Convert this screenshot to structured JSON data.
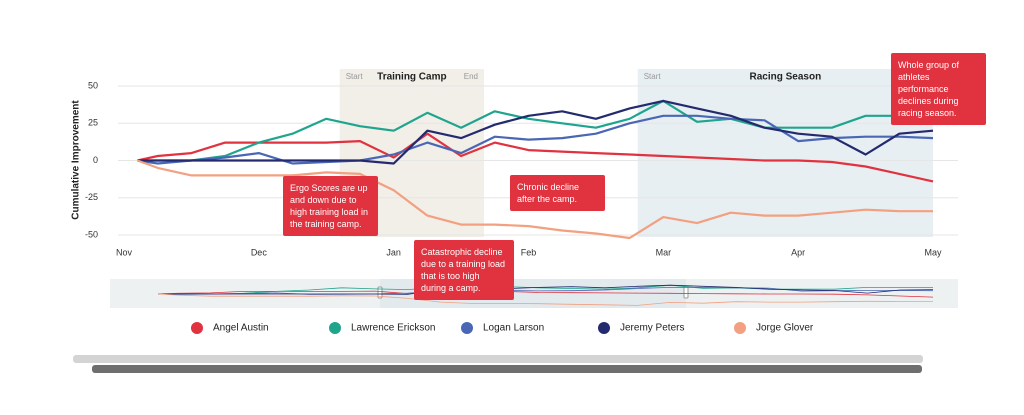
{
  "chart_data": {
    "type": "line",
    "y_label": "Cumulative Improvement",
    "x": [
      0.1,
      0.25,
      0.5,
      0.75,
      1.0,
      1.25,
      1.5,
      1.75,
      2.0,
      2.25,
      2.5,
      2.75,
      3.0,
      3.25,
      3.5,
      3.75,
      4.0,
      4.25,
      4.5,
      4.75,
      5.0,
      5.25,
      5.5,
      5.75,
      6.0
    ],
    "xlim": [
      0,
      6
    ],
    "xticks": [
      {
        "value": 0,
        "label": "Nov"
      },
      {
        "value": 1,
        "label": "Dec"
      },
      {
        "value": 2,
        "label": "Jan"
      },
      {
        "value": 3,
        "label": "Feb"
      },
      {
        "value": 4,
        "label": "Mar"
      },
      {
        "value": 5,
        "label": "Apr"
      },
      {
        "value": 6,
        "label": "May"
      }
    ],
    "ylim": [
      -50,
      50
    ],
    "yticks": [
      -50,
      -25,
      0,
      25,
      50
    ],
    "grid": true,
    "series": [
      {
        "name": "Angel Austin",
        "color": "#e0323f",
        "values": [
          0,
          3,
          5,
          12,
          12,
          12,
          12,
          13,
          2,
          18,
          3,
          12,
          7,
          6,
          5,
          4,
          3,
          2,
          1,
          0,
          0,
          -1,
          -4,
          -9,
          -14
        ]
      },
      {
        "name": "Lawrence Erickson",
        "color": "#1fa58e",
        "values": [
          0,
          0,
          0,
          3,
          12,
          18,
          28,
          23,
          20,
          32,
          22,
          33,
          28,
          25,
          22,
          28,
          40,
          26,
          28,
          22,
          22,
          22,
          30,
          30,
          30
        ]
      },
      {
        "name": "Logan Larson",
        "color": "#4a67b5",
        "values": [
          0,
          -2,
          0,
          2,
          5,
          -2,
          -1,
          0,
          4,
          12,
          5,
          16,
          14,
          15,
          18,
          25,
          30,
          30,
          28,
          27,
          13,
          15,
          16,
          16,
          15
        ]
      },
      {
        "name": "Jeremy Peters",
        "color": "#232a6e",
        "values": [
          0,
          0,
          0,
          0,
          0,
          0,
          0,
          0,
          -2,
          20,
          15,
          24,
          30,
          33,
          28,
          35,
          40,
          35,
          30,
          22,
          18,
          16,
          4,
          18,
          20
        ]
      },
      {
        "name": "Jorge Glover",
        "color": "#f2a080",
        "values": [
          0,
          -5,
          -10,
          -10,
          -10,
          -10,
          -8,
          -9,
          -20,
          -37,
          -43,
          -43,
          -44,
          -47,
          -49,
          -52,
          -38,
          -42,
          -35,
          -37,
          -37,
          -35,
          -33,
          -34,
          -34
        ]
      }
    ],
    "regions": [
      {
        "label": "Training Camp",
        "start_label": "Start",
        "end_label": "End",
        "x": [
          1.6,
          2.67
        ],
        "color": "#f2eee8"
      },
      {
        "label": "Racing Season",
        "start_label": "Start",
        "x": [
          3.81,
          6.0
        ],
        "color": "#e8eff2"
      }
    ],
    "annotations": [
      "Ergo Scores are up and down due to high training load in the training camp.",
      "Catastrophic decline due to a training load that is too high during a camp.",
      "Chronic decline after the camp.",
      "Whole group of athletes performance declines during racing season."
    ]
  }
}
